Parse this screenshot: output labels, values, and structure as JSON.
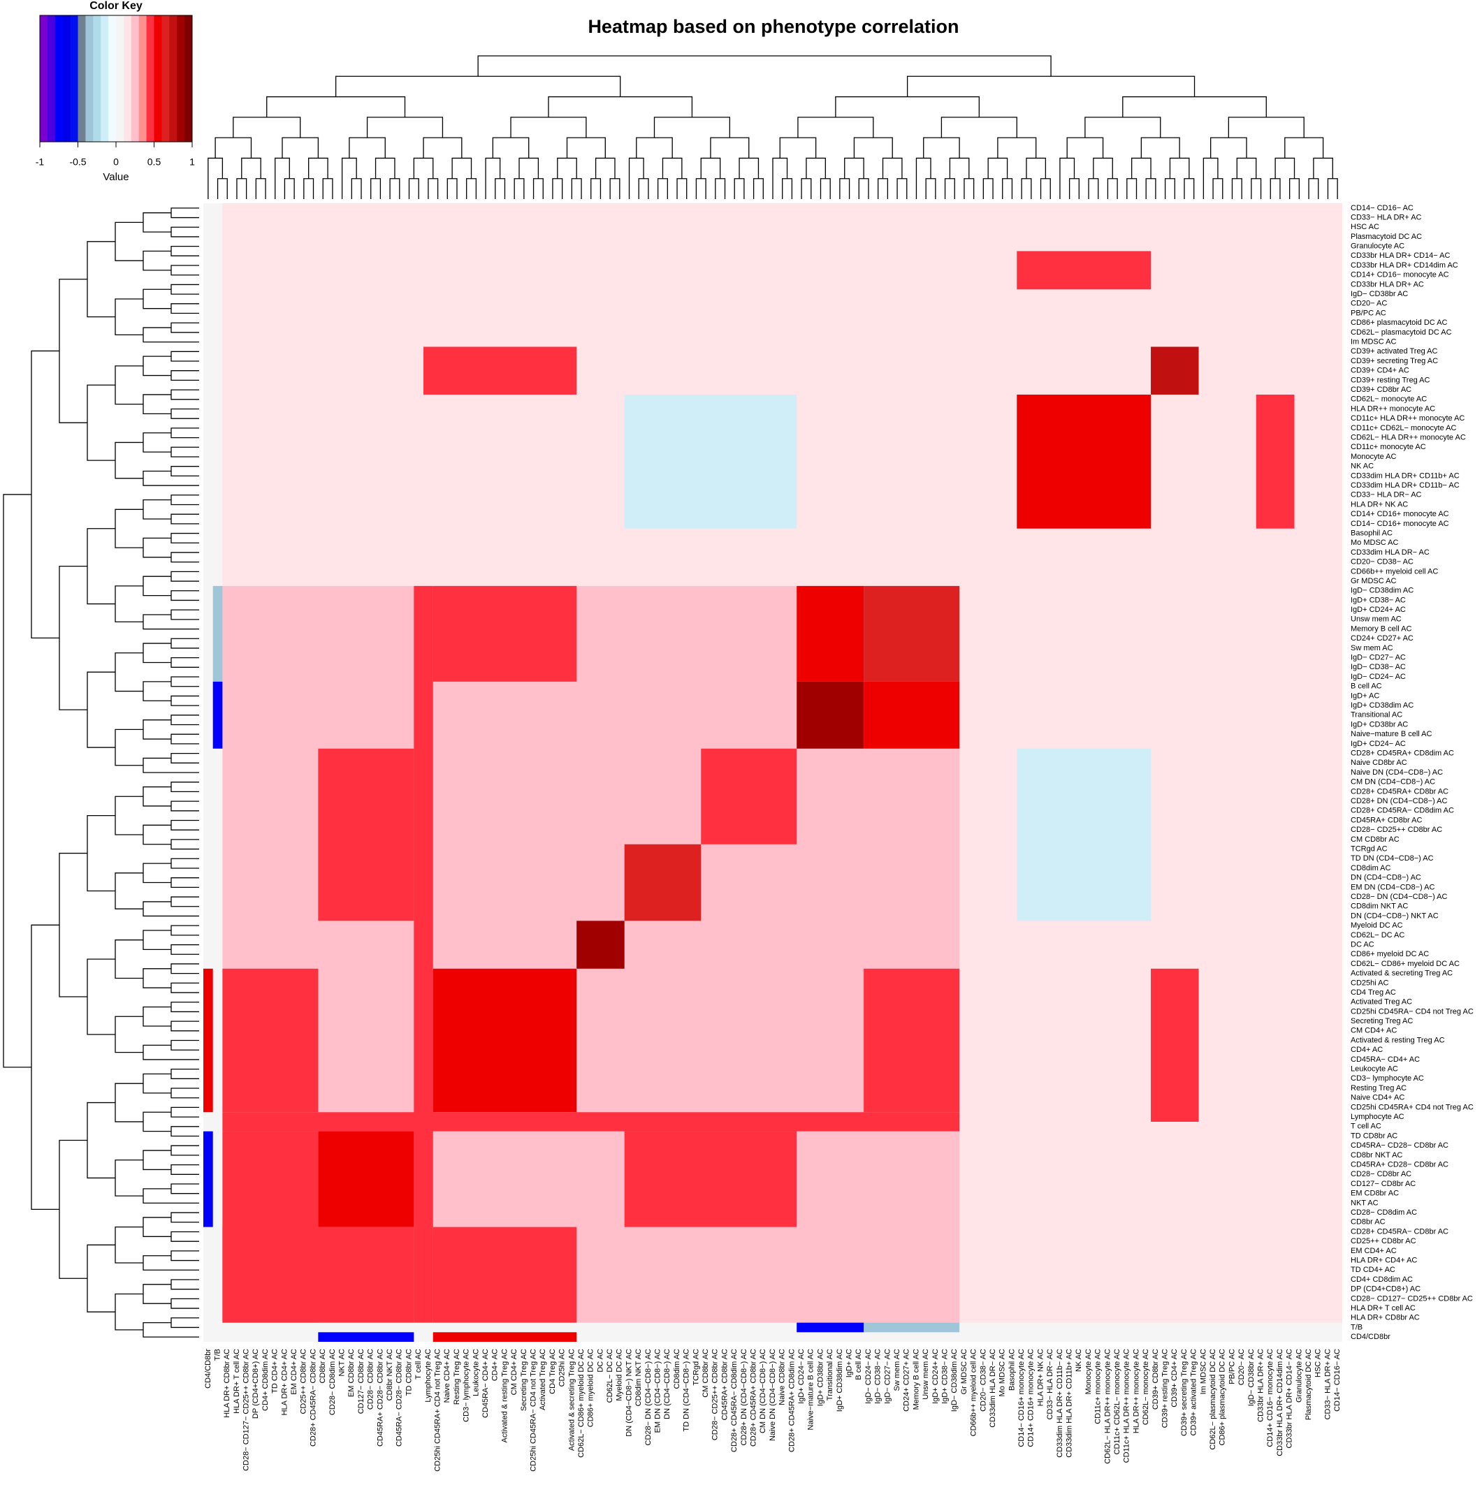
{
  "chart_data": {
    "type": "heatmap",
    "title": "Heatmap based on phenotype correlation",
    "color_key": {
      "title": "Color Key",
      "xlabel": "Value",
      "xlim": [
        -1,
        1
      ],
      "xticks": [
        -1,
        -0.5,
        0,
        0.5,
        1
      ],
      "breaks": [
        -1,
        -0.9,
        -0.8,
        -0.7,
        -0.6,
        -0.5,
        -0.4,
        -0.3,
        -0.2,
        -0.1,
        0,
        0.1,
        0.2,
        0.3,
        0.4,
        0.5,
        0.6,
        0.7,
        0.8,
        0.9,
        1
      ],
      "colors": [
        "#7b00d0",
        "#4b00e0",
        "#0000ff",
        "#0000e8",
        "#0010f0",
        "#708090",
        "#9fc5d8",
        "#b0dcea",
        "#d0eef8",
        "#f0fbff",
        "#f5f5f5",
        "#ffe4e8",
        "#ffc0cb",
        "#ff9090",
        "#ff3040",
        "#ee0000",
        "#dd2020",
        "#c01010",
        "#a00000",
        "#800000"
      ]
    },
    "labels": [
      "CD14− CD16− AC",
      "CD33− HLA DR+ AC",
      "HSC AC",
      "Plasmacytoid DC AC",
      "Granulocyte AC",
      "CD33br HLA DR+ CD14− AC",
      "CD33br HLA DR+ CD14dim AC",
      "CD14+ CD16− monocyte AC",
      "CD33br HLA DR+ AC",
      "IgD− CD38br AC",
      "CD20− AC",
      "PB/PC AC",
      "CD86+ plasmacytoid DC AC",
      "CD62L− plasmacytoid DC AC",
      "Im MDSC AC",
      "CD39+ activated Treg AC",
      "CD39+ secreting Treg  AC",
      "CD39+ CD4+ AC",
      "CD39+ resting Treg AC",
      "CD39+ CD8br AC",
      "CD62L− monocyte AC",
      "HLA DR++ monocyte AC",
      "CD11c+ HLA DR++ monocyte AC",
      "CD11c+ CD62L− monocyte AC",
      "CD62L− HLA DR++ monocyte AC",
      "CD11c+ monocyte AC",
      "Monocyte AC",
      "NK AC",
      "CD33dim HLA DR+ CD11b+ AC",
      "CD33dim HLA DR+ CD11b− AC",
      "CD33− HLA DR− AC",
      "HLA DR+ NK AC",
      "CD14+ CD16+ monocyte AC",
      "CD14− CD16+ monocyte AC",
      "Basophil AC",
      "Mo MDSC AC",
      "CD33dim HLA DR− AC",
      "CD20− CD38− AC",
      "CD66b++ myeloid cell AC",
      "Gr MDSC AC",
      "IgD− CD38dim AC",
      "IgD+ CD38− AC",
      "IgD+ CD24+ AC",
      "Unsw mem AC",
      "Memory B cell AC",
      "CD24+ CD27+ AC",
      "Sw mem AC",
      "IgD− CD27− AC",
      "IgD− CD38− AC",
      "IgD− CD24− AC",
      "B cell AC",
      "IgD+ AC",
      "IgD+ CD38dim AC",
      "Transitional AC",
      "IgD+ CD38br AC",
      "Naive−mature B cell AC",
      "IgD+ CD24− AC",
      "CD28+ CD45RA+ CD8dim AC",
      "Naive CD8br AC",
      "Naive DN (CD4−CD8−) AC",
      "CM DN (CD4−CD8−) AC",
      "CD28+ CD45RA+ CD8br AC",
      "CD28+ DN (CD4−CD8−) AC",
      "CD28+ CD45RA− CD8dim AC",
      "CD45RA+ CD8br AC",
      "CD28− CD25++ CD8br AC",
      "CM CD8br AC",
      "TCRgd AC",
      "TD DN (CD4−CD8−) AC",
      "CD8dim AC",
      "DN (CD4−CD8−) AC",
      "EM DN (CD4−CD8−) AC",
      "CD28− DN (CD4−CD8−) AC",
      "CD8dim NKT AC",
      "DN (CD4−CD8−) NKT AC",
      "Myeloid DC AC",
      "CD62L− DC AC",
      "DC AC",
      "CD86+ myeloid DC AC",
      "CD62L− CD86+ myeloid DC AC",
      "Activated & secreting Treg AC",
      "CD25hi AC",
      "CD4 Treg AC",
      "Activated Treg AC",
      "CD25hi CD45RA− CD4 not Treg AC",
      "Secreting Treg AC",
      "CM CD4+ AC",
      "Activated & resting Treg AC",
      "CD4+ AC",
      "CD45RA− CD4+ AC",
      "Leukocyte AC",
      "CD3− lymphocyte AC",
      "Resting Treg AC",
      "Naive CD4+ AC",
      "CD25hi CD45RA+ CD4 not Treg AC",
      "Lymphocyte AC",
      "T cell AC",
      "TD CD8br AC",
      "CD45RA− CD28− CD8br AC",
      "CD8br NKT AC",
      "CD45RA+ CD28− CD8br AC",
      "CD28− CD8br AC",
      "CD127− CD8br AC",
      "EM CD8br AC",
      "NKT AC",
      "CD28− CD8dim AC",
      "CD8br AC",
      "CD28+ CD45RA− CD8br AC",
      "CD25++ CD8br AC",
      "EM CD4+ AC",
      "HLA DR+ CD4+ AC",
      "TD CD4+ AC",
      "CD4+ CD8dim AC",
      "DP (CD4+CD8+) AC",
      "CD28− CD127− CD25++ CD8br AC",
      "HLA DR+ T cell AC",
      "HLA DR+ CD8br AC",
      "T/B",
      "CD4/CD8br"
    ],
    "background": 0.05,
    "symmetric": true,
    "blocks": [
      {
        "rows": [
          0,
          39
        ],
        "cols": [
          0,
          39
        ],
        "value": 0.15
      },
      {
        "rows": [
          0,
          39
        ],
        "cols": [
          40,
          116
        ],
        "value": 0.15
      },
      {
        "rows": [
          40,
          116
        ],
        "cols": [
          40,
          116
        ],
        "value": 0.25
      },
      {
        "rows": [
          20,
          33
        ],
        "cols": [
          20,
          33
        ],
        "value": 0.55
      },
      {
        "rows": [
          5,
          8
        ],
        "cols": [
          20,
          33
        ],
        "value": 0.45
      },
      {
        "rows": [
          15,
          19
        ],
        "cols": [
          15,
          19
        ],
        "value": 0.75
      },
      {
        "rows": [
          15,
          19
        ],
        "cols": [
          80,
          95
        ],
        "value": 0.45
      },
      {
        "rows": [
          20,
          33
        ],
        "cols": [
          57,
          74
        ],
        "value": -0.15
      },
      {
        "rows": [
          40,
          49
        ],
        "cols": [
          40,
          49
        ],
        "value": 0.65
      },
      {
        "rows": [
          40,
          49
        ],
        "cols": [
          50,
          56
        ],
        "value": 0.55
      },
      {
        "rows": [
          50,
          56
        ],
        "cols": [
          50,
          56
        ],
        "value": 0.85
      },
      {
        "rows": [
          40,
          49
        ],
        "cols": [
          80,
          94
        ],
        "value": 0.45
      },
      {
        "rows": [
          57,
          66
        ],
        "cols": [
          57,
          66
        ],
        "value": 0.5
      },
      {
        "rows": [
          67,
          74
        ],
        "cols": [
          67,
          74
        ],
        "value": 0.7
      },
      {
        "rows": [
          57,
          74
        ],
        "cols": [
          97,
          106
        ],
        "value": 0.45
      },
      {
        "rows": [
          75,
          79
        ],
        "cols": [
          75,
          79
        ],
        "value": 0.85
      },
      {
        "rows": [
          80,
          94
        ],
        "cols": [
          80,
          94
        ],
        "value": 0.55
      },
      {
        "rows": [
          80,
          94
        ],
        "cols": [
          107,
          116
        ],
        "value": 0.45
      },
      {
        "rows": [
          95,
          96
        ],
        "cols": [
          40,
          116
        ],
        "value": 0.5
      },
      {
        "rows": [
          97,
          106
        ],
        "cols": [
          97,
          106
        ],
        "value": 0.6
      },
      {
        "rows": [
          107,
          116
        ],
        "cols": [
          97,
          116
        ],
        "value": 0.45
      },
      {
        "rows": [
          117,
          117
        ],
        "cols": [
          40,
          49
        ],
        "value": -0.3
      },
      {
        "rows": [
          117,
          117
        ],
        "cols": [
          50,
          56
        ],
        "value": -0.75
      },
      {
        "rows": [
          118,
          118
        ],
        "cols": [
          80,
          94
        ],
        "value": 0.55
      },
      {
        "rows": [
          118,
          118
        ],
        "cols": [
          97,
          106
        ],
        "value": -0.75
      }
    ]
  }
}
